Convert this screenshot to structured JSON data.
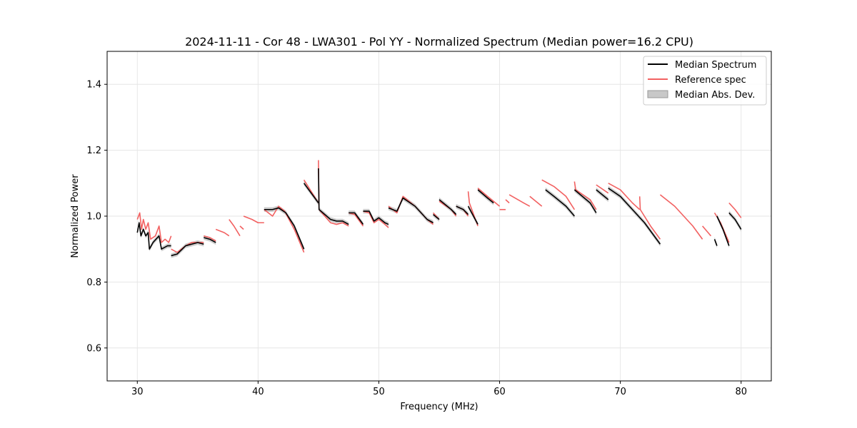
{
  "chart_data": {
    "type": "line",
    "title": "2024-11-11 - Cor 48 - LWA301 - Pol YY - Normalized Spectrum (Median power=16.2 CPU)",
    "xlabel": "Frequency (MHz)",
    "ylabel": "Normalized Power",
    "xlim": [
      27.5,
      82.5
    ],
    "ylim": [
      0.5,
      1.5
    ],
    "xticks": [
      30,
      40,
      50,
      60,
      70,
      80
    ],
    "yticks": [
      0.6,
      0.8,
      1.0,
      1.2,
      1.4
    ],
    "xtick_labels": [
      "30",
      "40",
      "50",
      "60",
      "70",
      "80"
    ],
    "ytick_labels": [
      "0.6",
      "0.8",
      "1.0",
      "1.2",
      "1.4"
    ],
    "grid": true,
    "legend_position": "top-right",
    "legend": {
      "median": "Median Spectrum",
      "reference": "Reference spec",
      "mad": "Median Abs. Dev."
    },
    "colors": {
      "median": "#000000",
      "reference": "#f26161",
      "mad": "#c8c8c8",
      "grid": "#e6e6e6"
    },
    "mad_halfwidth": 0.007,
    "series": [
      {
        "name": "Reference spec",
        "segments": [
          [
            [
              30.0,
              0.99
            ],
            [
              30.2,
              1.01
            ],
            [
              30.35,
              0.96
            ],
            [
              30.5,
              0.99
            ],
            [
              30.7,
              0.96
            ],
            [
              30.9,
              0.98
            ],
            [
              31.1,
              0.93
            ],
            [
              31.5,
              0.94
            ],
            [
              31.8,
              0.97
            ],
            [
              32.0,
              0.92
            ],
            [
              32.3,
              0.93
            ],
            [
              32.6,
              0.92
            ],
            [
              32.8,
              0.94
            ]
          ],
          [
            [
              32.8,
              0.9
            ],
            [
              33.3,
              0.89
            ],
            [
              34.0,
              0.91
            ],
            [
              34.5,
              0.92
            ],
            [
              35.5,
              0.92
            ]
          ],
          [
            [
              35.5,
              0.94
            ],
            [
              36.0,
              0.935
            ],
            [
              36.5,
              0.925
            ]
          ],
          [
            [
              36.5,
              0.96
            ],
            [
              37.2,
              0.95
            ],
            [
              37.6,
              0.94
            ]
          ],
          [
            [
              37.6,
              0.99
            ],
            [
              38.0,
              0.97
            ],
            [
              38.5,
              0.94
            ]
          ],
          [
            [
              38.5,
              0.97
            ],
            [
              38.8,
              0.96
            ]
          ],
          [
            [
              38.8,
              1.0
            ],
            [
              39.5,
              0.99
            ],
            [
              40.0,
              0.98
            ],
            [
              40.5,
              0.98
            ]
          ],
          [
            [
              40.5,
              1.02
            ],
            [
              41.2,
              1.0
            ],
            [
              41.7,
              1.03
            ],
            [
              42.2,
              1.015
            ],
            [
              43.0,
              0.96
            ],
            [
              43.8,
              0.89
            ]
          ],
          [
            [
              43.8,
              1.11
            ],
            [
              45.0,
              1.04
            ]
          ],
          [
            [
              45.0,
              1.17
            ],
            [
              45.05,
              1.02
            ],
            [
              46.0,
              0.98
            ],
            [
              46.5,
              0.975
            ],
            [
              47.0,
              0.98
            ],
            [
              47.5,
              0.97
            ]
          ],
          [
            [
              47.5,
              1.01
            ],
            [
              48.0,
              1.005
            ],
            [
              48.7,
              0.97
            ]
          ],
          [
            [
              48.7,
              1.015
            ],
            [
              49.2,
              1.01
            ],
            [
              49.6,
              0.98
            ],
            [
              50.0,
              0.99
            ],
            [
              50.5,
              0.975
            ],
            [
              50.8,
              0.965
            ]
          ],
          [
            [
              50.8,
              1.03
            ],
            [
              51.5,
              1.01
            ],
            [
              52.0,
              1.06
            ],
            [
              53.0,
              1.03
            ],
            [
              54.0,
              0.99
            ],
            [
              54.5,
              0.975
            ]
          ],
          [
            [
              54.5,
              1.01
            ],
            [
              55.0,
              0.99
            ]
          ],
          [
            [
              55.0,
              1.045
            ],
            [
              56.0,
              1.02
            ],
            [
              56.4,
              1.0
            ]
          ],
          [
            [
              56.4,
              1.03
            ],
            [
              57.0,
              1.02
            ],
            [
              57.4,
              1.0
            ]
          ],
          [
            [
              57.4,
              1.075
            ],
            [
              57.5,
              1.04
            ],
            [
              58.2,
              0.97
            ]
          ],
          [
            [
              58.2,
              1.085
            ],
            [
              59.0,
              1.06
            ],
            [
              60.0,
              1.03
            ]
          ],
          [
            [
              60.0,
              1.02
            ],
            [
              60.5,
              1.02
            ]
          ],
          [
            [
              60.5,
              1.05
            ],
            [
              60.8,
              1.04
            ]
          ],
          [
            [
              60.8,
              1.065
            ],
            [
              62.0,
              1.04
            ],
            [
              62.5,
              1.03
            ]
          ],
          [
            [
              62.5,
              1.06
            ],
            [
              63.5,
              1.03
            ]
          ],
          [
            [
              63.5,
              1.11
            ],
            [
              64.5,
              1.09
            ],
            [
              65.5,
              1.06
            ],
            [
              66.2,
              1.02
            ]
          ],
          [
            [
              66.2,
              1.105
            ],
            [
              66.3,
              1.08
            ],
            [
              67.5,
              1.05
            ],
            [
              68.0,
              1.02
            ]
          ],
          [
            [
              68.0,
              1.095
            ],
            [
              69.0,
              1.07
            ]
          ],
          [
            [
              69.0,
              1.1
            ],
            [
              70.0,
              1.08
            ],
            [
              71.0,
              1.04
            ],
            [
              71.6,
              1.02
            ]
          ],
          [
            [
              71.6,
              1.06
            ],
            [
              71.65,
              1.02
            ],
            [
              72.5,
              0.97
            ],
            [
              73.3,
              0.93
            ]
          ],
          [
            [
              73.3,
              1.065
            ],
            [
              74.5,
              1.03
            ],
            [
              75.5,
              0.99
            ],
            [
              76.0,
              0.97
            ],
            [
              76.8,
              0.93
            ]
          ],
          [
            [
              76.8,
              0.97
            ],
            [
              77.5,
              0.94
            ]
          ],
          [
            [
              77.8,
              1.01
            ],
            [
              78.3,
              0.98
            ],
            [
              79.0,
              0.92
            ]
          ],
          [
            [
              79.0,
              1.04
            ],
            [
              79.5,
              1.02
            ],
            [
              80.0,
              0.995
            ]
          ]
        ]
      },
      {
        "name": "Median Spectrum",
        "segments": [
          [
            [
              30.0,
              0.95
            ],
            [
              30.15,
              0.98
            ],
            [
              30.3,
              0.94
            ],
            [
              30.5,
              0.96
            ],
            [
              30.7,
              0.94
            ],
            [
              30.9,
              0.95
            ],
            [
              31.0,
              0.9
            ],
            [
              31.3,
              0.92
            ],
            [
              31.8,
              0.94
            ],
            [
              32.0,
              0.9
            ],
            [
              32.5,
              0.91
            ],
            [
              32.8,
              0.91
            ]
          ],
          [
            [
              32.8,
              0.88
            ],
            [
              33.3,
              0.885
            ],
            [
              34.0,
              0.91
            ],
            [
              35.0,
              0.92
            ],
            [
              35.5,
              0.915
            ]
          ],
          [
            [
              35.5,
              0.935
            ],
            [
              36.0,
              0.93
            ],
            [
              36.5,
              0.92
            ]
          ],
          [
            [
              40.5,
              1.02
            ],
            [
              41.2,
              1.02
            ],
            [
              41.7,
              1.025
            ],
            [
              42.3,
              1.01
            ],
            [
              43.0,
              0.97
            ],
            [
              43.8,
              0.9
            ]
          ],
          [
            [
              43.8,
              1.1
            ],
            [
              45.0,
              1.04
            ]
          ],
          [
            [
              45.0,
              1.145
            ],
            [
              45.05,
              1.02
            ],
            [
              46.0,
              0.99
            ],
            [
              46.5,
              0.985
            ],
            [
              47.0,
              0.985
            ],
            [
              47.5,
              0.975
            ]
          ],
          [
            [
              47.5,
              1.01
            ],
            [
              48.0,
              1.01
            ],
            [
              48.7,
              0.975
            ]
          ],
          [
            [
              48.7,
              1.015
            ],
            [
              49.2,
              1.015
            ],
            [
              49.6,
              0.985
            ],
            [
              50.0,
              0.995
            ],
            [
              50.5,
              0.98
            ],
            [
              50.8,
              0.975
            ]
          ],
          [
            [
              50.8,
              1.025
            ],
            [
              51.5,
              1.015
            ],
            [
              52.0,
              1.055
            ],
            [
              53.0,
              1.03
            ],
            [
              54.0,
              0.99
            ],
            [
              54.5,
              0.98
            ]
          ],
          [
            [
              54.5,
              1.005
            ],
            [
              55.0,
              0.99
            ]
          ],
          [
            [
              55.0,
              1.05
            ],
            [
              56.0,
              1.02
            ],
            [
              56.4,
              1.005
            ]
          ],
          [
            [
              56.4,
              1.03
            ],
            [
              57.0,
              1.02
            ],
            [
              57.4,
              1.005
            ]
          ],
          [
            [
              57.4,
              1.03
            ],
            [
              58.2,
              0.975
            ]
          ],
          [
            [
              58.2,
              1.08
            ],
            [
              59.0,
              1.055
            ],
            [
              59.5,
              1.04
            ]
          ],
          [
            [
              63.8,
              1.08
            ],
            [
              64.5,
              1.06
            ],
            [
              65.5,
              1.03
            ],
            [
              66.2,
              1.0
            ]
          ],
          [
            [
              66.2,
              1.08
            ],
            [
              67.5,
              1.04
            ],
            [
              68.0,
              1.01
            ]
          ],
          [
            [
              68.0,
              1.08
            ],
            [
              69.0,
              1.05
            ]
          ],
          [
            [
              69.0,
              1.085
            ],
            [
              70.0,
              1.06
            ],
            [
              71.0,
              1.02
            ],
            [
              72.0,
              0.98
            ],
            [
              73.0,
              0.93
            ],
            [
              73.3,
              0.915
            ]
          ],
          [
            [
              77.8,
              0.93
            ],
            [
              78.0,
              0.91
            ]
          ],
          [
            [
              78.0,
              1.0
            ],
            [
              78.5,
              0.96
            ],
            [
              79.0,
              0.91
            ]
          ],
          [
            [
              79.0,
              1.01
            ],
            [
              79.5,
              0.99
            ],
            [
              80.0,
              0.96
            ]
          ]
        ]
      }
    ]
  }
}
